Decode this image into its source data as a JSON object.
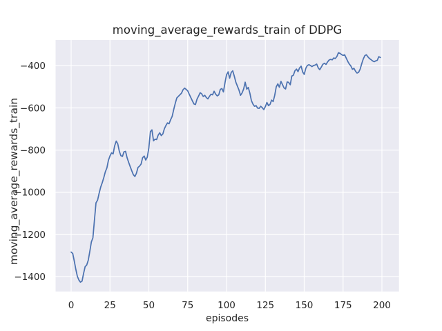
{
  "chart_data": {
    "type": "line",
    "title": "moving_average_rewards_train of DDPG",
    "xlabel": "episodes",
    "ylabel": "moving_average_rewards_train",
    "x_ticks": [
      0,
      25,
      50,
      75,
      100,
      125,
      150,
      175,
      200
    ],
    "x_tick_labels": [
      "0",
      "25",
      "50",
      "75",
      "100",
      "125",
      "150",
      "175",
      "200"
    ],
    "y_ticks": [
      -400,
      -600,
      -800,
      -1000,
      -1200,
      -1400
    ],
    "y_tick_labels": [
      "−400",
      "−600",
      "−800",
      "−1000",
      "−1200",
      "−1400"
    ],
    "xlim": [
      -10,
      211
    ],
    "ylim": [
      -1470,
      -278
    ],
    "grid": true,
    "legend_position": "none",
    "series": [
      {
        "name": "DDPG",
        "x_start": 0,
        "x_step": 1,
        "values": [
          -1283,
          -1290,
          -1325,
          -1365,
          -1398,
          -1416,
          -1426,
          -1421,
          -1385,
          -1352,
          -1345,
          -1322,
          -1281,
          -1235,
          -1216,
          -1130,
          -1050,
          -1037,
          -1005,
          -975,
          -955,
          -930,
          -903,
          -884,
          -848,
          -827,
          -813,
          -818,
          -780,
          -757,
          -770,
          -806,
          -826,
          -830,
          -808,
          -806,
          -836,
          -858,
          -878,
          -898,
          -916,
          -925,
          -910,
          -882,
          -876,
          -866,
          -836,
          -828,
          -847,
          -833,
          -790,
          -712,
          -704,
          -756,
          -748,
          -750,
          -729,
          -718,
          -731,
          -723,
          -699,
          -683,
          -671,
          -675,
          -656,
          -640,
          -608,
          -578,
          -553,
          -545,
          -538,
          -530,
          -514,
          -506,
          -512,
          -519,
          -535,
          -551,
          -566,
          -581,
          -584,
          -558,
          -544,
          -528,
          -533,
          -546,
          -540,
          -551,
          -557,
          -545,
          -535,
          -538,
          -521,
          -535,
          -543,
          -538,
          -512,
          -508,
          -524,
          -480,
          -443,
          -429,
          -459,
          -432,
          -424,
          -450,
          -478,
          -497,
          -515,
          -540,
          -529,
          -510,
          -478,
          -511,
          -503,
          -530,
          -565,
          -582,
          -592,
          -589,
          -601,
          -602,
          -592,
          -599,
          -608,
          -593,
          -574,
          -589,
          -583,
          -563,
          -570,
          -540,
          -500,
          -486,
          -502,
          -474,
          -489,
          -505,
          -510,
          -477,
          -479,
          -490,
          -449,
          -445,
          -424,
          -416,
          -428,
          -410,
          -402,
          -430,
          -441,
          -412,
          -399,
          -395,
          -399,
          -404,
          -399,
          -397,
          -392,
          -410,
          -419,
          -406,
          -393,
          -388,
          -394,
          -382,
          -373,
          -370,
          -372,
          -363,
          -366,
          -356,
          -338,
          -341,
          -347,
          -351,
          -348,
          -364,
          -379,
          -392,
          -401,
          -417,
          -412,
          -426,
          -435,
          -431,
          -416,
          -390,
          -368,
          -352,
          -348,
          -358,
          -366,
          -371,
          -377,
          -381,
          -377,
          -374,
          -357,
          -361
        ]
      }
    ],
    "colors": {
      "line": "#4c72b0",
      "plot_background": "#eaeaf2",
      "grid": "#ffffff",
      "text": "#262626",
      "figure_background": "#ffffff"
    }
  }
}
